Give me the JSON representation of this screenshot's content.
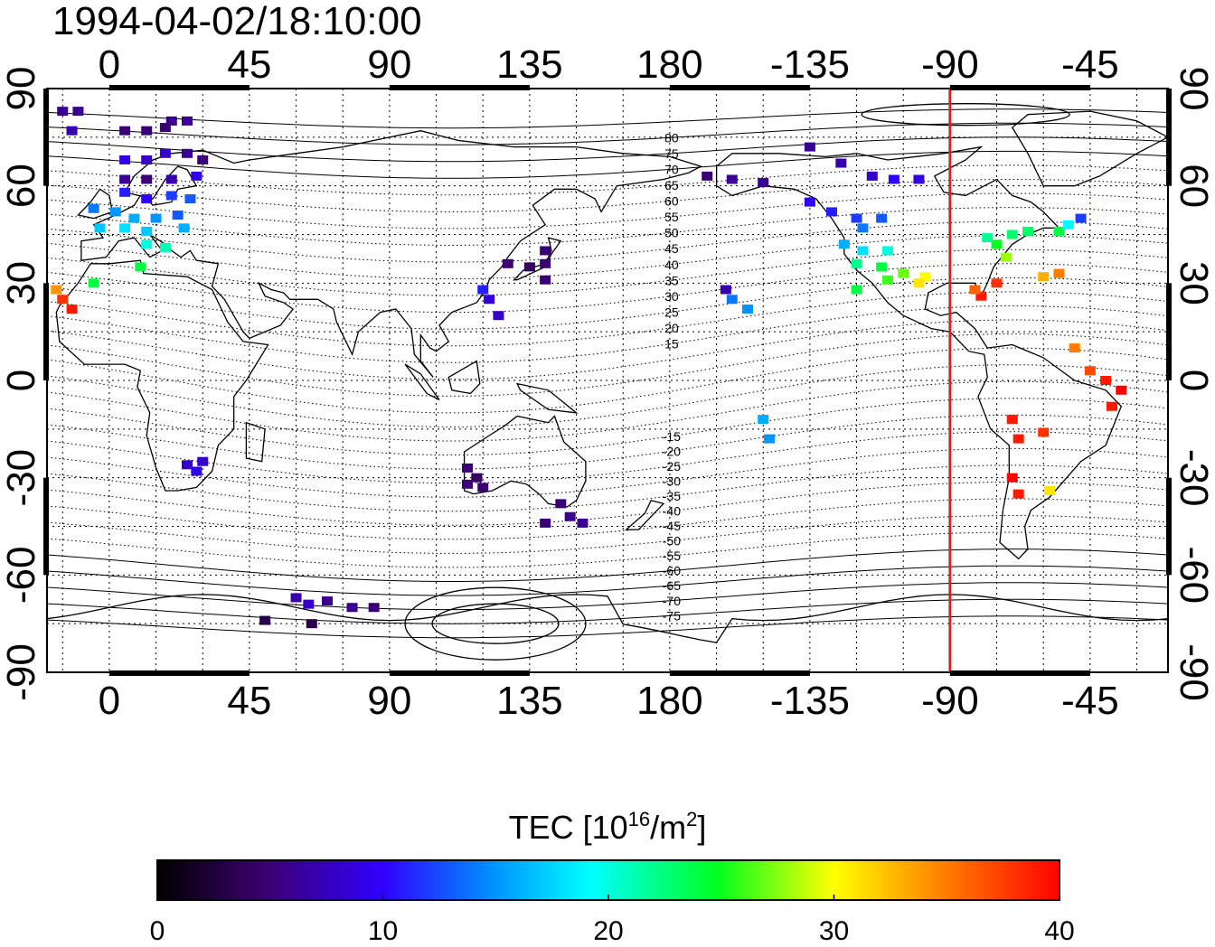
{
  "title": "1994-04-02/18:10:00",
  "lon_ticks": [
    "0",
    "45",
    "90",
    "135",
    "180",
    "-135",
    "-90",
    "-45"
  ],
  "lat_ticks": [
    "90",
    "60",
    "30",
    "0",
    "-30",
    "-60",
    "-90"
  ],
  "contour_labels": [
    "80",
    "75",
    "70",
    "65",
    "60",
    "55",
    "50",
    "45",
    "40",
    "35",
    "30",
    "25",
    "20",
    "15",
    "-15",
    "-20",
    "-25",
    "-30",
    "-35",
    "-40",
    "-45",
    "-50",
    "-55",
    "-60",
    "-65",
    "-70",
    "-75"
  ],
  "colorbar": {
    "label_main": "TEC  [10",
    "label_sup": "16",
    "label_mid": "/m",
    "label_sup2": "2",
    "label_end": "]",
    "ticks": [
      "0",
      "10",
      "20",
      "30",
      "40"
    ],
    "range": [
      0,
      40
    ]
  },
  "terminator_lon": -90,
  "colors": {
    "terminator": "#e0201a",
    "frame": "#000000"
  },
  "map_extent": {
    "lon_min": -20,
    "lon_max": 340,
    "lat_min": -90,
    "lat_max": 90
  },
  "tec_points": [
    {
      "lon": -15,
      "lat": 83,
      "tec": 6
    },
    {
      "lon": -10,
      "lat": 83,
      "tec": 6
    },
    {
      "lon": 20,
      "lat": 80,
      "tec": 6
    },
    {
      "lon": 25,
      "lat": 80,
      "tec": 6
    },
    {
      "lon": -12,
      "lat": 77,
      "tec": 7
    },
    {
      "lon": 5,
      "lat": 77,
      "tec": 5
    },
    {
      "lon": 12,
      "lat": 77,
      "tec": 5
    },
    {
      "lon": 18,
      "lat": 78,
      "tec": 5
    },
    {
      "lon": 5,
      "lat": 68,
      "tec": 9
    },
    {
      "lon": 12,
      "lat": 68,
      "tec": 8
    },
    {
      "lon": 18,
      "lat": 70,
      "tec": 8
    },
    {
      "lon": 25,
      "lat": 70,
      "tec": 6
    },
    {
      "lon": 30,
      "lat": 68,
      "tec": 5
    },
    {
      "lon": 5,
      "lat": 62,
      "tec": 6
    },
    {
      "lon": 12,
      "lat": 62,
      "tec": 5
    },
    {
      "lon": 20,
      "lat": 62,
      "tec": 7
    },
    {
      "lon": 28,
      "lat": 63,
      "tec": 9
    },
    {
      "lon": 5,
      "lat": 58,
      "tec": 11
    },
    {
      "lon": 12,
      "lat": 56,
      "tec": 10
    },
    {
      "lon": 20,
      "lat": 57,
      "tec": 12
    },
    {
      "lon": 26,
      "lat": 56,
      "tec": 13
    },
    {
      "lon": -5,
      "lat": 53,
      "tec": 14
    },
    {
      "lon": 2,
      "lat": 52,
      "tec": 15
    },
    {
      "lon": 8,
      "lat": 50,
      "tec": 16
    },
    {
      "lon": 15,
      "lat": 50,
      "tec": 15
    },
    {
      "lon": 22,
      "lat": 51,
      "tec": 13
    },
    {
      "lon": -3,
      "lat": 47,
      "tec": 17
    },
    {
      "lon": 5,
      "lat": 47,
      "tec": 18
    },
    {
      "lon": 12,
      "lat": 46,
      "tec": 17
    },
    {
      "lon": 24,
      "lat": 47,
      "tec": 16
    },
    {
      "lon": 12,
      "lat": 42,
      "tec": 20
    },
    {
      "lon": 18,
      "lat": 41,
      "tec": 21
    },
    {
      "lon": 10,
      "lat": 35,
      "tec": 24
    },
    {
      "lon": -5,
      "lat": 30,
      "tec": 24
    },
    {
      "lon": -17,
      "lat": 28,
      "tec": 34
    },
    {
      "lon": -15,
      "lat": 25,
      "tec": 38
    },
    {
      "lon": -12,
      "lat": 22,
      "tec": 39
    },
    {
      "lon": 25,
      "lat": -26,
      "tec": 8
    },
    {
      "lon": 28,
      "lat": -28,
      "tec": 9
    },
    {
      "lon": 30,
      "lat": -25,
      "tec": 8
    },
    {
      "lon": 115,
      "lat": -32,
      "tec": 5
    },
    {
      "lon": 118,
      "lat": -30,
      "tec": 4
    },
    {
      "lon": 120,
      "lat": -33,
      "tec": 5
    },
    {
      "lon": 115,
      "lat": -27,
      "tec": 5
    },
    {
      "lon": 145,
      "lat": -38,
      "tec": 5
    },
    {
      "lon": 148,
      "lat": -42,
      "tec": 6
    },
    {
      "lon": 140,
      "lat": -44,
      "tec": 5
    },
    {
      "lon": 152,
      "lat": -44,
      "tec": 6
    },
    {
      "lon": 140,
      "lat": 40,
      "tec": 5
    },
    {
      "lon": 135,
      "lat": 35,
      "tec": 4
    },
    {
      "lon": 140,
      "lat": 36,
      "tec": 5
    },
    {
      "lon": 128,
      "lat": 36,
      "tec": 5
    },
    {
      "lon": 140,
      "lat": 31,
      "tec": 5
    },
    {
      "lon": 120,
      "lat": 28,
      "tec": 11
    },
    {
      "lon": 122,
      "lat": 25,
      "tec": 9
    },
    {
      "lon": 125,
      "lat": 20,
      "tec": 8
    },
    {
      "lon": 60,
      "lat": -67,
      "tec": 7
    },
    {
      "lon": 64,
      "lat": -69,
      "tec": 8
    },
    {
      "lon": 70,
      "lat": -68,
      "tec": 6
    },
    {
      "lon": 78,
      "lat": -70,
      "tec": 6
    },
    {
      "lon": 85,
      "lat": -70,
      "tec": 5
    },
    {
      "lon": 50,
      "lat": -74,
      "tec": 3
    },
    {
      "lon": 65,
      "lat": -75,
      "tec": 3
    },
    {
      "lon": -168,
      "lat": 63,
      "tec": 5
    },
    {
      "lon": -160,
      "lat": 62,
      "tec": 6
    },
    {
      "lon": -150,
      "lat": 61,
      "tec": 6
    },
    {
      "lon": -135,
      "lat": 72,
      "tec": 6
    },
    {
      "lon": -125,
      "lat": 67,
      "tec": 7
    },
    {
      "lon": -115,
      "lat": 63,
      "tec": 8
    },
    {
      "lon": -100,
      "lat": 62,
      "tec": 9
    },
    {
      "lon": -108,
      "lat": 62,
      "tec": 10
    },
    {
      "lon": -135,
      "lat": 55,
      "tec": 10
    },
    {
      "lon": -128,
      "lat": 52,
      "tec": 11
    },
    {
      "lon": -120,
      "lat": 50,
      "tec": 12
    },
    {
      "lon": -112,
      "lat": 50,
      "tec": 13
    },
    {
      "lon": -118,
      "lat": 47,
      "tec": 14
    },
    {
      "lon": -124,
      "lat": 42,
      "tec": 16
    },
    {
      "lon": -118,
      "lat": 40,
      "tec": 18
    },
    {
      "lon": -110,
      "lat": 40,
      "tec": 20
    },
    {
      "lon": -120,
      "lat": 36,
      "tec": 22
    },
    {
      "lon": -112,
      "lat": 35,
      "tec": 24
    },
    {
      "lon": -105,
      "lat": 33,
      "tec": 27
    },
    {
      "lon": -98,
      "lat": 32,
      "tec": 30
    },
    {
      "lon": -120,
      "lat": 28,
      "tec": 24
    },
    {
      "lon": -110,
      "lat": 31,
      "tec": 26
    },
    {
      "lon": -100,
      "lat": 30,
      "tec": 31
    },
    {
      "lon": -80,
      "lat": 26,
      "tec": 39
    },
    {
      "lon": -75,
      "lat": 30,
      "tec": 38
    },
    {
      "lon": -82,
      "lat": 28,
      "tec": 36
    },
    {
      "lon": -72,
      "lat": 38,
      "tec": 28
    },
    {
      "lon": -75,
      "lat": 42,
      "tec": 25
    },
    {
      "lon": -70,
      "lat": 45,
      "tec": 23
    },
    {
      "lon": -78,
      "lat": 44,
      "tec": 22
    },
    {
      "lon": -65,
      "lat": 46,
      "tec": 23
    },
    {
      "lon": -55,
      "lat": 46,
      "tec": 24
    },
    {
      "lon": -52,
      "lat": 48,
      "tec": 19
    },
    {
      "lon": -48,
      "lat": 50,
      "tec": 12
    },
    {
      "lon": -60,
      "lat": 32,
      "tec": 33
    },
    {
      "lon": -55,
      "lat": 33,
      "tec": 35
    },
    {
      "lon": -50,
      "lat": 10,
      "tec": 35
    },
    {
      "lon": -45,
      "lat": 3,
      "tec": 37
    },
    {
      "lon": -40,
      "lat": 0,
      "tec": 39
    },
    {
      "lon": -35,
      "lat": -3,
      "tec": 40
    },
    {
      "lon": -38,
      "lat": -8,
      "tec": 39
    },
    {
      "lon": -70,
      "lat": -12,
      "tec": 39
    },
    {
      "lon": -68,
      "lat": -18,
      "tec": 39
    },
    {
      "lon": -60,
      "lat": -16,
      "tec": 38
    },
    {
      "lon": -70,
      "lat": -30,
      "tec": 40
    },
    {
      "lon": -68,
      "lat": -35,
      "tec": 39
    },
    {
      "lon": -58,
      "lat": -34,
      "tec": 31
    },
    {
      "lon": -160,
      "lat": 25,
      "tec": 14
    },
    {
      "lon": -155,
      "lat": 22,
      "tec": 15
    },
    {
      "lon": -162,
      "lat": 28,
      "tec": 7
    },
    {
      "lon": -150,
      "lat": -12,
      "tec": 16
    },
    {
      "lon": -148,
      "lat": -18,
      "tec": 15
    }
  ]
}
